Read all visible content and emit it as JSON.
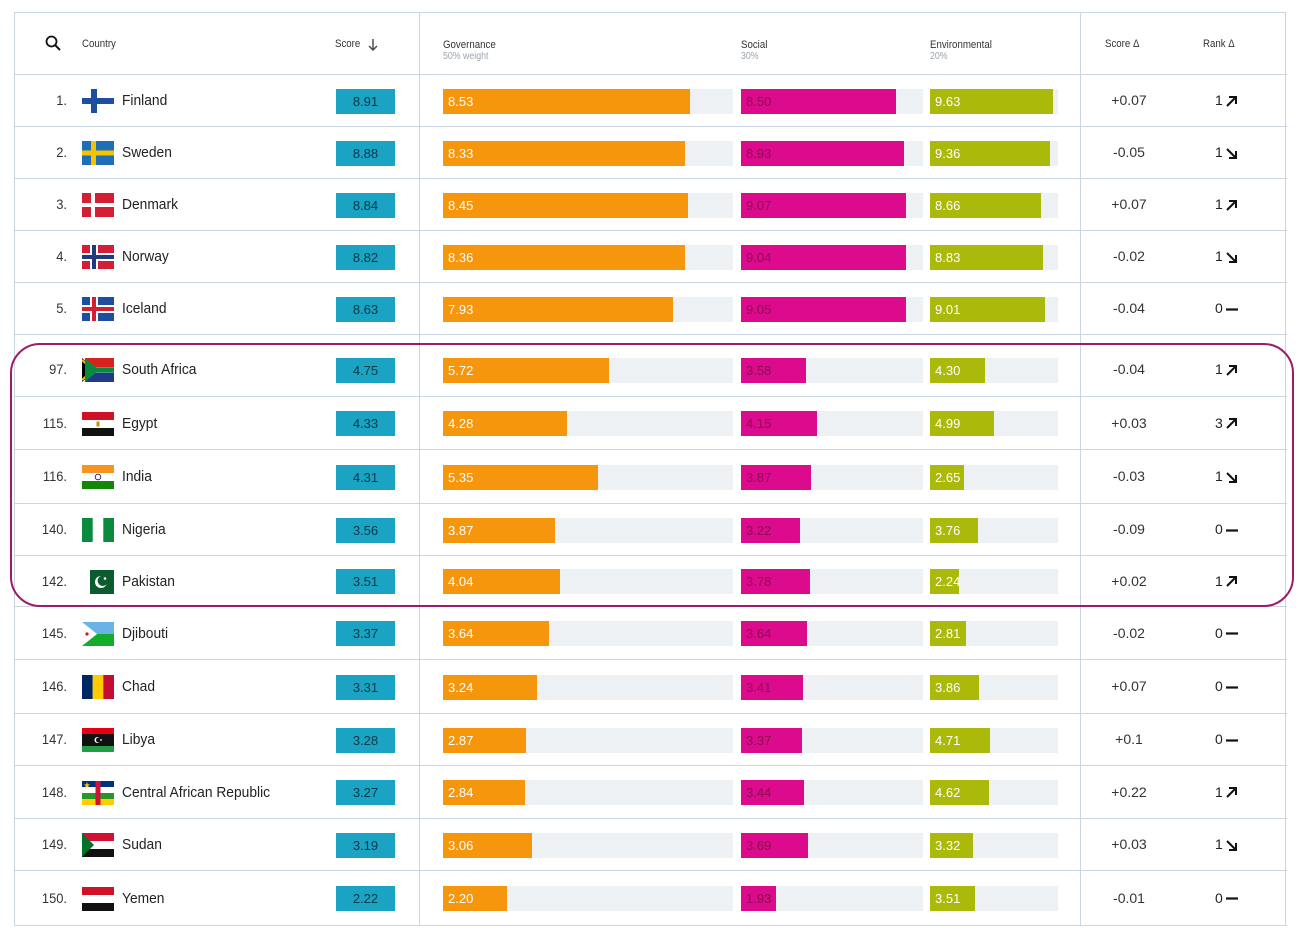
{
  "header": {
    "country": "Country",
    "score": "Score",
    "governance": "Governance",
    "governance_sub": "50% weight",
    "social": "Social",
    "social_sub": "30%",
    "environmental": "Environmental",
    "environmental_sub": "20%",
    "score_delta": "Score Δ",
    "rank_delta": "Rank Δ"
  },
  "colors": {
    "score": "#1aa3c2",
    "governance": "#f5960c",
    "social": "#dc0a8c",
    "environmental": "#aab90a",
    "highlight": "#9c1c68"
  },
  "rows": [
    {
      "rank": "1.",
      "flag": "finland",
      "country": "Finland",
      "score": "8.91",
      "gov": "8.53",
      "soc": "8.50",
      "env": "9.63",
      "delta": "+0.07",
      "rank_change": "1",
      "trend": "up"
    },
    {
      "rank": "2.",
      "flag": "sweden",
      "country": "Sweden",
      "score": "8.88",
      "gov": "8.33",
      "soc": "8.93",
      "env": "9.36",
      "delta": "-0.05",
      "rank_change": "1",
      "trend": "down"
    },
    {
      "rank": "3.",
      "flag": "denmark",
      "country": "Denmark",
      "score": "8.84",
      "gov": "8.45",
      "soc": "9.07",
      "env": "8.66",
      "delta": "+0.07",
      "rank_change": "1",
      "trend": "up"
    },
    {
      "rank": "4.",
      "flag": "norway",
      "country": "Norway",
      "score": "8.82",
      "gov": "8.36",
      "soc": "9.04",
      "env": "8.83",
      "delta": "-0.02",
      "rank_change": "1",
      "trend": "down"
    },
    {
      "rank": "5.",
      "flag": "iceland",
      "country": "Iceland",
      "score": "8.63",
      "gov": "7.93",
      "soc": "9.05",
      "env": "9.01",
      "delta": "-0.04",
      "rank_change": "0",
      "trend": "flat"
    },
    {
      "rank": "97.",
      "flag": "south-africa",
      "country": "South Africa",
      "score": "4.75",
      "gov": "5.72",
      "soc": "3.58",
      "env": "4.30",
      "delta": "-0.04",
      "rank_change": "1",
      "trend": "up"
    },
    {
      "rank": "115.",
      "flag": "egypt",
      "country": "Egypt",
      "score": "4.33",
      "gov": "4.28",
      "soc": "4.15",
      "env": "4.99",
      "delta": "+0.03",
      "rank_change": "3",
      "trend": "up"
    },
    {
      "rank": "116.",
      "flag": "india",
      "country": "India",
      "score": "4.31",
      "gov": "5.35",
      "soc": "3.87",
      "env": "2.65",
      "delta": "-0.03",
      "rank_change": "1",
      "trend": "down"
    },
    {
      "rank": "140.",
      "flag": "nigeria",
      "country": "Nigeria",
      "score": "3.56",
      "gov": "3.87",
      "soc": "3.22",
      "env": "3.76",
      "delta": "-0.09",
      "rank_change": "0",
      "trend": "flat"
    },
    {
      "rank": "142.",
      "flag": "pakistan",
      "country": "Pakistan",
      "score": "3.51",
      "gov": "4.04",
      "soc": "3.78",
      "env": "2.24",
      "delta": "+0.02",
      "rank_change": "1",
      "trend": "up"
    },
    {
      "rank": "145.",
      "flag": "djibouti",
      "country": "Djibouti",
      "score": "3.37",
      "gov": "3.64",
      "soc": "3.64",
      "env": "2.81",
      "delta": "-0.02",
      "rank_change": "0",
      "trend": "flat"
    },
    {
      "rank": "146.",
      "flag": "chad",
      "country": "Chad",
      "score": "3.31",
      "gov": "3.24",
      "soc": "3.41",
      "env": "3.86",
      "delta": "+0.07",
      "rank_change": "0",
      "trend": "flat"
    },
    {
      "rank": "147.",
      "flag": "libya",
      "country": "Libya",
      "score": "3.28",
      "gov": "2.87",
      "soc": "3.37",
      "env": "4.71",
      "delta": "+0.1",
      "rank_change": "0",
      "trend": "flat"
    },
    {
      "rank": "148.",
      "flag": "central-african-republic",
      "country": "Central African Republic",
      "score": "3.27",
      "gov": "2.84",
      "soc": "3.44",
      "env": "4.62",
      "delta": "+0.22",
      "rank_change": "1",
      "trend": "up"
    },
    {
      "rank": "149.",
      "flag": "sudan",
      "country": "Sudan",
      "score": "3.19",
      "gov": "3.06",
      "soc": "3.69",
      "env": "3.32",
      "delta": "+0.03",
      "rank_change": "1",
      "trend": "down"
    },
    {
      "rank": "150.",
      "flag": "yemen",
      "country": "Yemen",
      "score": "2.22",
      "gov": "2.20",
      "soc": "1.93",
      "env": "3.51",
      "delta": "-0.01",
      "rank_change": "0",
      "trend": "flat"
    }
  ]
}
